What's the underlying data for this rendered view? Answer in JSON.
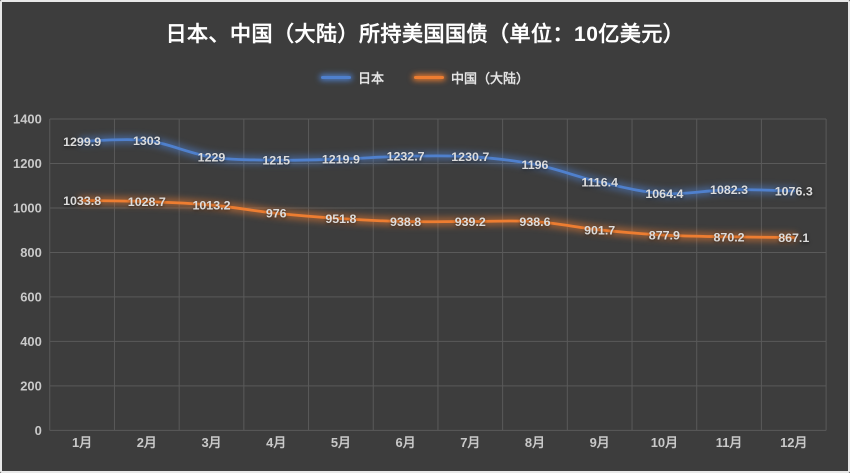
{
  "chart": {
    "background": "#3d3d3d",
    "frame_border": "#e8e8e8"
  },
  "chart_data": {
    "type": "line",
    "title": "日本、中国（大陆）所持美国国债（单位：10亿美元）",
    "title_color": "#ffffff",
    "categories": [
      "1月",
      "2月",
      "3月",
      "4月",
      "5月",
      "6月",
      "7月",
      "8月",
      "9月",
      "10月",
      "11月",
      "12月"
    ],
    "series": [
      {
        "name": "日本",
        "color": "#4f80cd",
        "values": [
          1299.9,
          1303,
          1229,
          1215,
          1219.9,
          1232.7,
          1230.7,
          1196,
          1116.4,
          1064.4,
          1082.3,
          1076.3
        ]
      },
      {
        "name": "中国（大陆）",
        "color": "#ed7d31",
        "values": [
          1033.8,
          1028.7,
          1013.2,
          976,
          951.8,
          938.8,
          939.2,
          938.6,
          901.7,
          877.9,
          870.2,
          867.1
        ]
      }
    ],
    "ylim": [
      0,
      1400
    ],
    "ytick_step": 200,
    "yticks": [
      "0",
      "200",
      "400",
      "600",
      "800",
      "1000",
      "1200",
      "1400"
    ],
    "grid": true,
    "grid_color": "#5a5a5a",
    "tick_label_color": "#c9c9c9",
    "data_label_color": "#dcdcdc",
    "legend_position": "top",
    "data_labels": true,
    "smooth": true
  }
}
